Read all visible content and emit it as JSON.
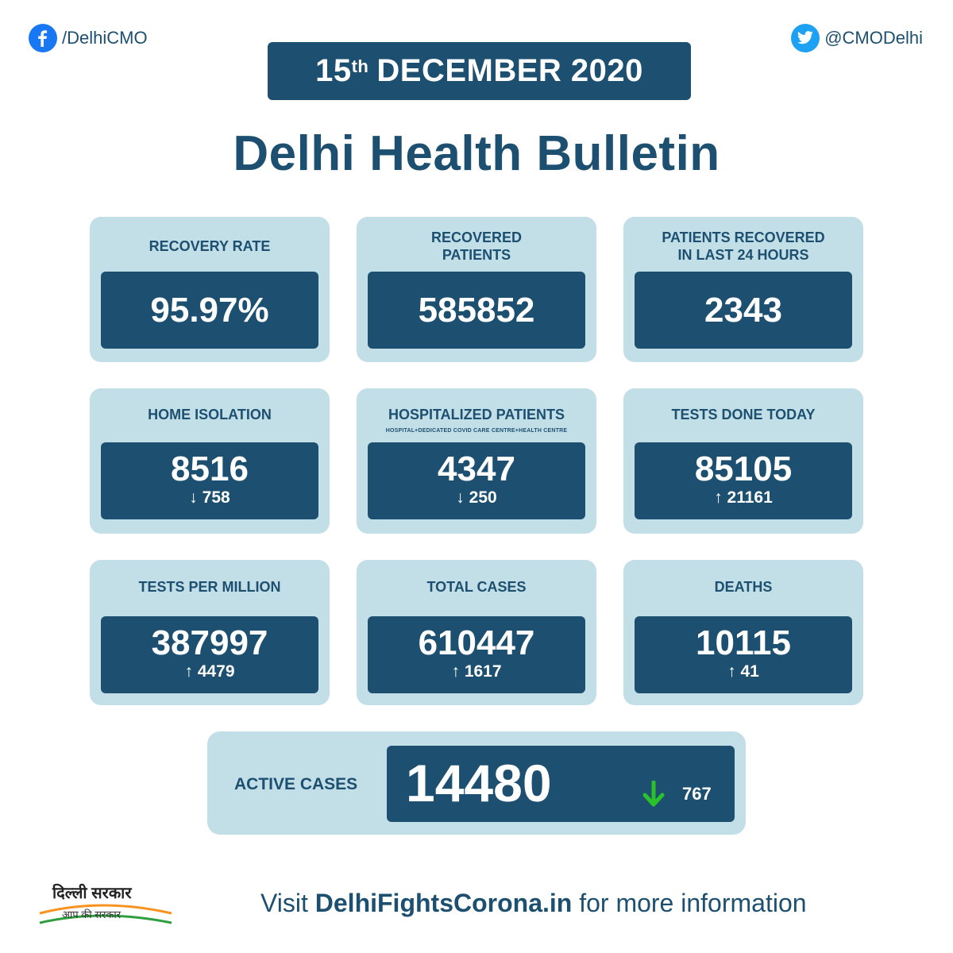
{
  "social": {
    "facebook": {
      "handle": "/DelhiCMO",
      "icon": "facebook-icon"
    },
    "twitter": {
      "handle": "@CMODelhi",
      "icon": "twitter-icon"
    }
  },
  "date": {
    "day": "15",
    "suffix": "th",
    "month_year": "DECEMBER 2020"
  },
  "title": "Delhi Health Bulletin",
  "colors": {
    "navy": "#1d5070",
    "card_bg": "#c2dfe8",
    "arrow_green": "#2bc12b"
  },
  "stats": [
    {
      "label": "RECOVERY RATE",
      "sublabel": "",
      "value": "95.97%",
      "delta": "",
      "direction": ""
    },
    {
      "label": "RECOVERED\nPATIENTS",
      "sublabel": "",
      "value": "585852",
      "delta": "",
      "direction": ""
    },
    {
      "label": "PATIENTS RECOVERED\nIN LAST 24 HOURS",
      "sublabel": "",
      "value": "2343",
      "delta": "",
      "direction": ""
    },
    {
      "label": "HOME ISOLATION",
      "sublabel": "",
      "value": "8516",
      "delta": "758",
      "direction": "down"
    },
    {
      "label": "HOSPITALIZED PATIENTS",
      "sublabel": "HOSPITAL+DEDICATED COVID CARE CENTRE+HEALTH CENTRE",
      "value": "4347",
      "delta": "250",
      "direction": "down"
    },
    {
      "label": "TESTS DONE TODAY",
      "sublabel": "",
      "value": "85105",
      "delta": "21161",
      "direction": "up"
    },
    {
      "label": "TESTS PER MILLION",
      "sublabel": "",
      "value": "387997",
      "delta": "4479",
      "direction": "up"
    },
    {
      "label": "TOTAL CASES",
      "sublabel": "",
      "value": "610447",
      "delta": "1617",
      "direction": "up"
    },
    {
      "label": "DEATHS",
      "sublabel": "",
      "value": "10115",
      "delta": "41",
      "direction": "up"
    }
  ],
  "active": {
    "label": "ACTIVE CASES",
    "value": "14480",
    "delta": "767",
    "direction": "down"
  },
  "footer": {
    "logo_line1": "दिल्ली सरकार",
    "logo_line2": "आप की सरकार",
    "visit_prefix": "Visit ",
    "visit_site": "DelhiFightsCorona.in",
    "visit_suffix": " for more information"
  }
}
